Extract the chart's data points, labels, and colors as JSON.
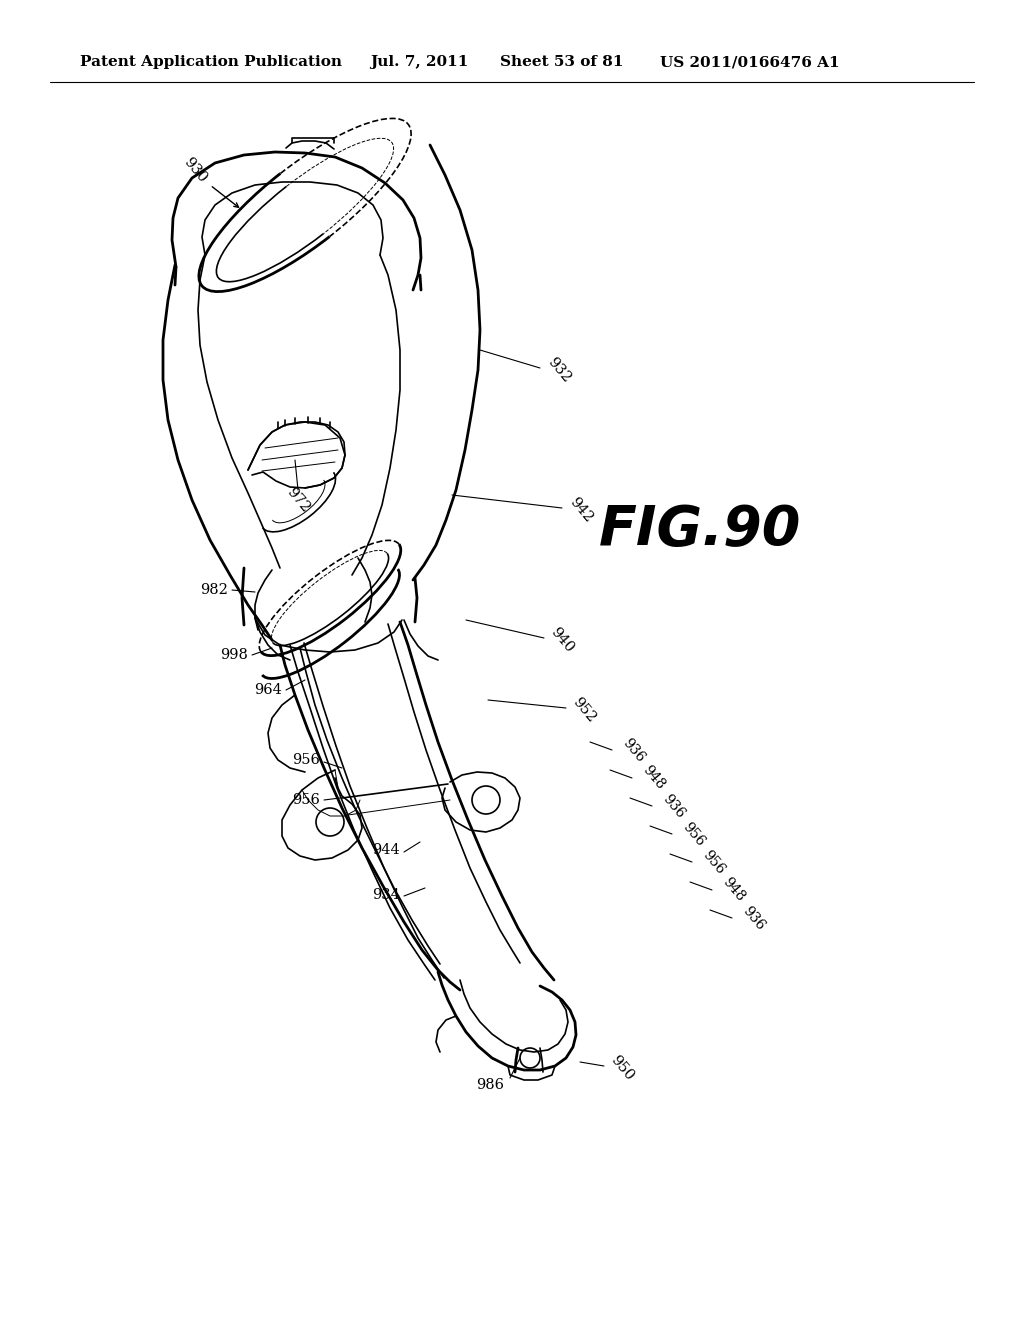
{
  "bg_color": "#ffffff",
  "title_line1": "Patent Application Publication",
  "title_date": "Jul. 7, 2011",
  "title_sheet": "Sheet 53 of 81",
  "title_patent": "US 2011/0166476 A1",
  "fig_label": "FIG.90",
  "header_fontsize": 11,
  "label_fontsize": 10.5,
  "fig_label_fontsize": 40,
  "line_color": "#000000",
  "text_color": "#000000",
  "lw_thin": 0.7,
  "lw_med": 1.2,
  "lw_thick": 2.0,
  "lw_xthick": 2.5
}
